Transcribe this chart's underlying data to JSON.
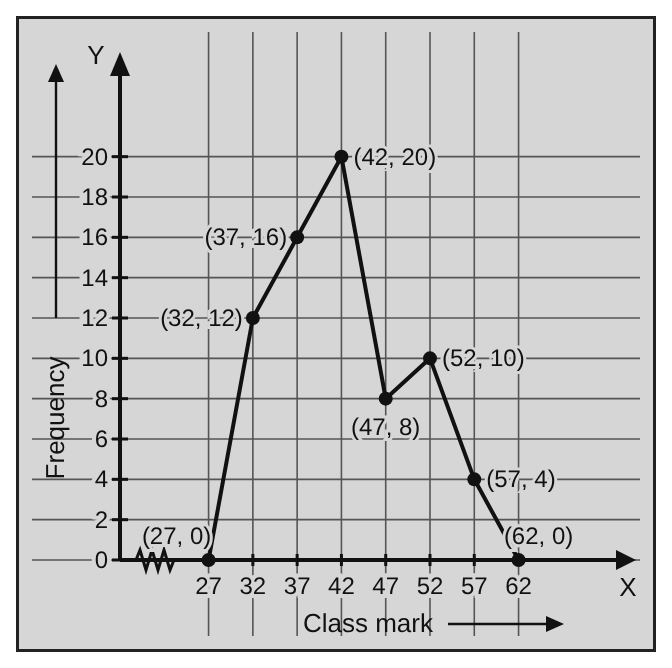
{
  "chart_data": {
    "type": "line",
    "xlabel": "Class mark",
    "ylabel": "Frequency",
    "x": [
      27,
      32,
      37,
      42,
      47,
      52,
      57,
      62
    ],
    "series": [
      {
        "color": "#111111",
        "values": [
          0,
          12,
          16,
          20,
          8,
          10,
          4,
          0
        ]
      }
    ],
    "xlim": [
      17,
      73
    ],
    "ylim": [
      0,
      24
    ],
    "xticks": [
      27,
      32,
      37,
      42,
      47,
      52,
      57,
      62
    ],
    "yticks": [
      0,
      2,
      4,
      6,
      8,
      10,
      12,
      14,
      16,
      18,
      20
    ],
    "grid": true,
    "marker": "circle",
    "line_style": "solid",
    "annotations": [
      {
        "text": "(27, 0)",
        "x": 27,
        "y": 0
      },
      {
        "text": "(32, 12)",
        "x": 32,
        "y": 12
      },
      {
        "text": "(37, 16)",
        "x": 37,
        "y": 16
      },
      {
        "text": "(42, 20)",
        "x": 42,
        "y": 20
      },
      {
        "text": "(47, 8)",
        "x": 47,
        "y": 8
      },
      {
        "text": "(52, 10)",
        "x": 52,
        "y": 10
      },
      {
        "text": "(57, 4)",
        "x": 57,
        "y": 4
      },
      {
        "text": "(62, 0)",
        "x": 62,
        "y": 0
      },
      "X",
      "Y"
    ]
  }
}
